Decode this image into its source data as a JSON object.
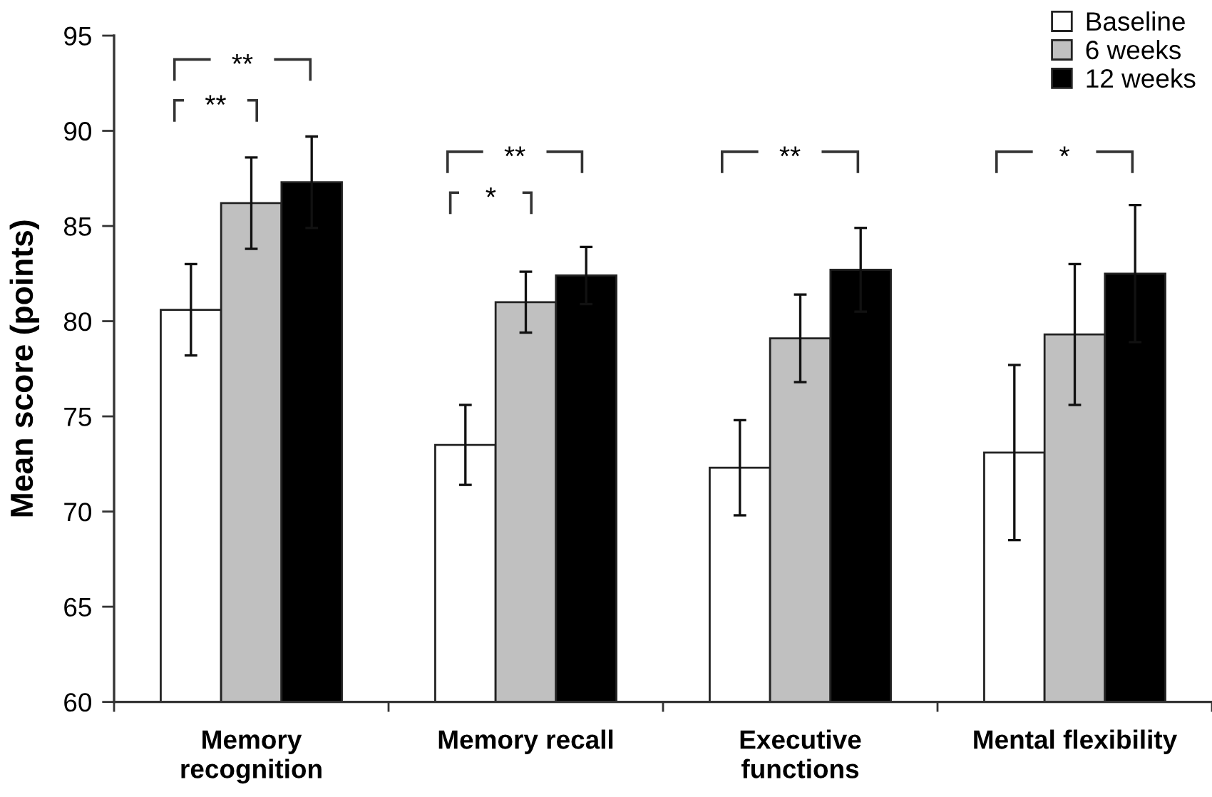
{
  "chart_data": {
    "type": "bar",
    "ylabel": "Mean score (points)",
    "categories": [
      "Memory\nrecognition",
      "Memory recall",
      "Executive\nfunctions",
      "Mental flexibility"
    ],
    "series": [
      {
        "name": "Baseline",
        "color": "#ffffff",
        "values": [
          80.6,
          73.5,
          72.3,
          73.1
        ],
        "errors": [
          2.4,
          2.1,
          2.5,
          4.6
        ]
      },
      {
        "name": "6 weeks",
        "color": "#c0c0c0",
        "values": [
          86.2,
          81.0,
          79.1,
          79.3
        ],
        "errors": [
          2.4,
          1.6,
          2.3,
          3.7
        ]
      },
      {
        "name": "12 weeks",
        "color": "#000000",
        "values": [
          87.3,
          82.4,
          82.7,
          82.5
        ],
        "errors": [
          2.4,
          1.5,
          2.2,
          3.6
        ]
      }
    ],
    "ylim": [
      60,
      95
    ],
    "yticks": [
      60,
      65,
      70,
      75,
      80,
      85,
      90,
      95
    ],
    "legend": "top right",
    "annotations": [
      "**",
      "**",
      "**",
      "*",
      "**",
      "*"
    ]
  }
}
